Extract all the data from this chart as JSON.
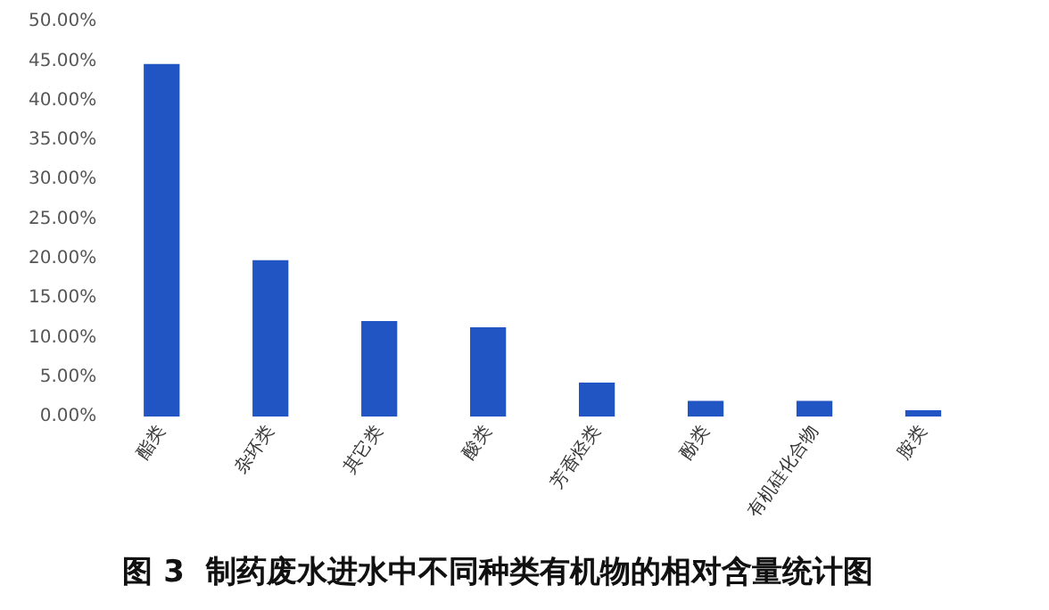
{
  "chart_data": {
    "type": "bar",
    "title": "图 3  制药废水进水中不同种类有机物的相对含量统计图",
    "categories": [
      "酯类",
      "杂环类",
      "其它类",
      "酸类",
      "芳香烃类",
      "酚类",
      "有机硅化合物",
      "胺类"
    ],
    "values": [
      44.6,
      19.8,
      12.1,
      11.3,
      4.3,
      2.0,
      2.0,
      0.8
    ],
    "color": "#2255c4",
    "ylim": [
      0,
      50
    ],
    "yticks": [
      {
        "value": 0,
        "label": "0.00%"
      },
      {
        "value": 5,
        "label": "5.00%"
      },
      {
        "value": 10,
        "label": "10.00%"
      },
      {
        "value": 15,
        "label": "15.00%"
      },
      {
        "value": 20,
        "label": "20.00%"
      },
      {
        "value": 25,
        "label": "25.00%"
      },
      {
        "value": 30,
        "label": "30.00%"
      },
      {
        "value": 35,
        "label": "35.00%"
      },
      {
        "value": 40,
        "label": "40.00%"
      },
      {
        "value": 45,
        "label": "45.00%"
      },
      {
        "value": 50,
        "label": "50.00%"
      }
    ],
    "grid": false,
    "legend": false
  }
}
